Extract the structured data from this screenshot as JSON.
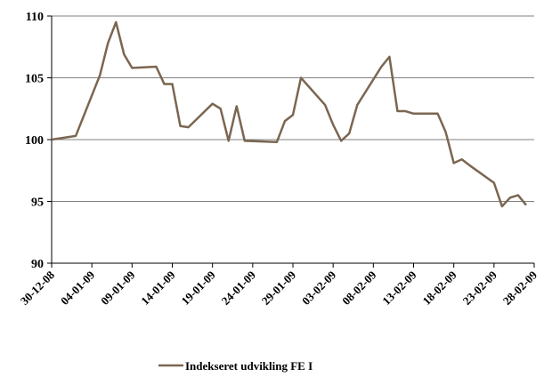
{
  "chart_data": {
    "type": "line",
    "title": "",
    "xlabel": "",
    "ylabel": "",
    "ylim": [
      90,
      110
    ],
    "yticks": [
      90,
      95,
      100,
      105,
      110
    ],
    "xlim": [
      "2008-12-30",
      "2009-02-28"
    ],
    "xticks": [
      "30-12-08",
      "04-01-09",
      "09-01-09",
      "14-01-09",
      "19-01-09",
      "24-01-09",
      "29-01-09",
      "03-02-09",
      "08-02-09",
      "13-02-09",
      "18-02-09",
      "23-02-09",
      "28-02-09"
    ],
    "grid": "horizontal",
    "legend_position": "bottom-center",
    "colors": {
      "series": "#7b6650",
      "grid": "#808080",
      "axis": "#000000"
    },
    "series": [
      {
        "name": "Indekseret udvikling FE I",
        "x": [
          "2008-12-30",
          "2009-01-02",
          "2009-01-05",
          "2009-01-06",
          "2009-01-07",
          "2009-01-08",
          "2009-01-09",
          "2009-01-12",
          "2009-01-13",
          "2009-01-14",
          "2009-01-15",
          "2009-01-16",
          "2009-01-19",
          "2009-01-20",
          "2009-01-21",
          "2009-01-22",
          "2009-01-23",
          "2009-01-27",
          "2009-01-28",
          "2009-01-29",
          "2009-01-30",
          "2009-02-02",
          "2009-02-03",
          "2009-02-04",
          "2009-02-05",
          "2009-02-06",
          "2009-02-09",
          "2009-02-10",
          "2009-02-11",
          "2009-02-12",
          "2009-02-13",
          "2009-02-16",
          "2009-02-17",
          "2009-02-18",
          "2009-02-19",
          "2009-02-20",
          "2009-02-23",
          "2009-02-24",
          "2009-02-25",
          "2009-02-26",
          "2009-02-27"
        ],
        "values": [
          100.0,
          100.3,
          105.2,
          107.8,
          109.5,
          106.9,
          105.8,
          105.9,
          104.5,
          104.5,
          101.1,
          101.0,
          102.9,
          102.5,
          99.9,
          102.7,
          99.9,
          99.8,
          101.5,
          102.0,
          105.0,
          102.8,
          101.2,
          99.9,
          100.5,
          102.8,
          105.9,
          106.7,
          102.3,
          102.3,
          102.1,
          102.1,
          100.6,
          98.1,
          98.4,
          97.9,
          96.5,
          94.6,
          95.3,
          95.5,
          94.7
        ]
      }
    ]
  }
}
